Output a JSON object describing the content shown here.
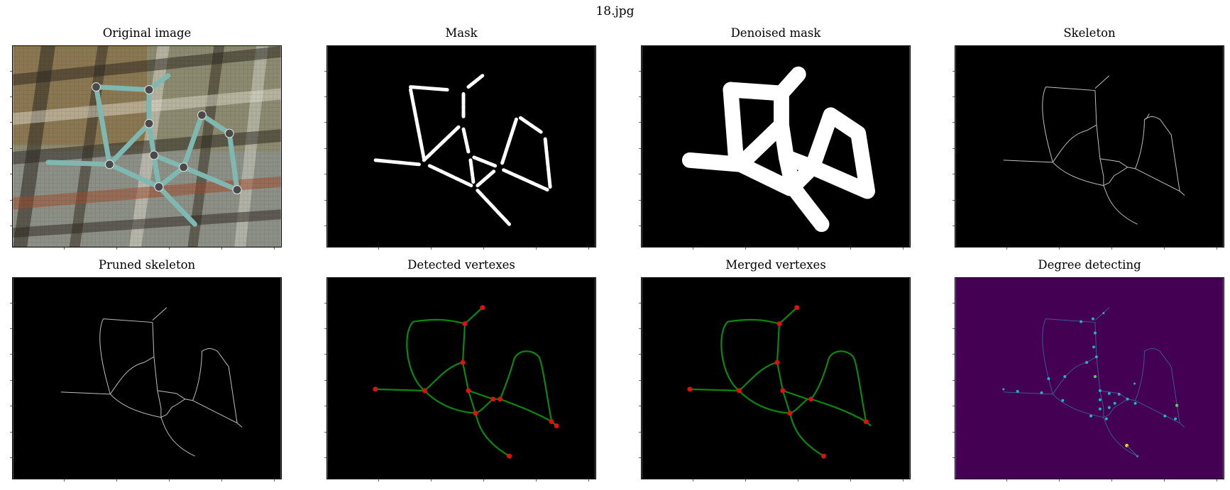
{
  "figure": {
    "suptitle": "18.jpg"
  },
  "panels": [
    {
      "title": "Original image",
      "kind": "photo"
    },
    {
      "title": "Mask",
      "kind": "mask"
    },
    {
      "title": "Denoised mask",
      "kind": "denoised"
    },
    {
      "title": "Skeleton",
      "kind": "skeleton"
    },
    {
      "title": "Pruned skeleton",
      "kind": "pruned"
    },
    {
      "title": "Detected vertexes",
      "kind": "vertexes"
    },
    {
      "title": "Merged vertexes",
      "kind": "merged"
    },
    {
      "title": "Degree detecting",
      "kind": "degree"
    }
  ],
  "colors": {
    "background_dark": "#000000",
    "skeleton_line": "#bfbfbf",
    "graph_edge": "#0a8a0a",
    "vertex": "#e01010",
    "degree_bg": "#440154",
    "degree_node": "#21b5c4",
    "degree_node_high": "#fde725"
  }
}
